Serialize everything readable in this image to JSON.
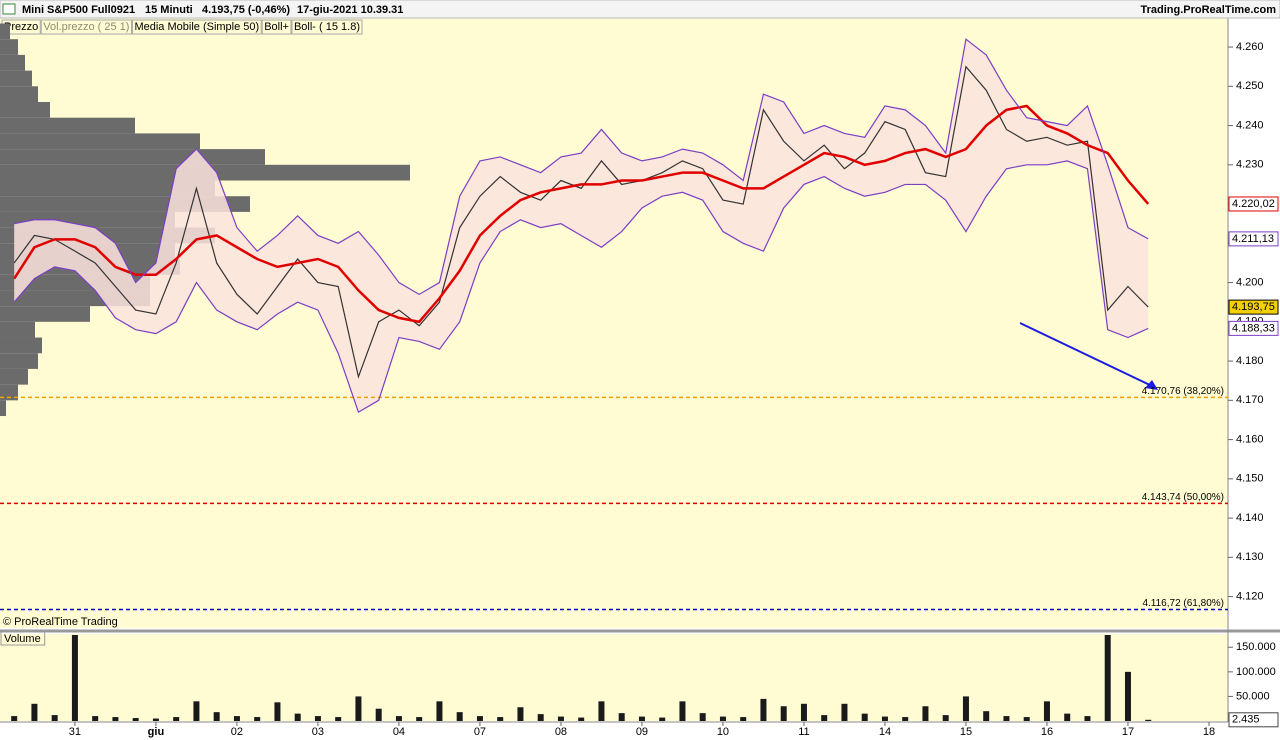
{
  "header": {
    "instrument": "Mini S&P500 Full0921",
    "timeframe": "15 Minuti",
    "quote": "4.193,75 (-0,46%)",
    "datetime": "17-giu-2021 10.39.31",
    "site": "Trading.ProRealTime.com"
  },
  "chart_data": [
    {
      "type": "line",
      "copyright": "© ProRealTime Trading",
      "x": [
        -3,
        -2,
        -1,
        0,
        1,
        2,
        3,
        4,
        5,
        6,
        7,
        8,
        9,
        10,
        11,
        12,
        13,
        14,
        15,
        16,
        17,
        18,
        19,
        20,
        21,
        22,
        23,
        24,
        25,
        26,
        27,
        28,
        29,
        30,
        31,
        32,
        33,
        34,
        35,
        36,
        37,
        38,
        39,
        40,
        41,
        42,
        43,
        44,
        45,
        46,
        47,
        48,
        49,
        50,
        51,
        52,
        53
      ],
      "xlim": [
        -3.7,
        56.94
      ],
      "ylim": [
        4.112,
        4.2674
      ],
      "yticks": [
        {
          "value": 4.12,
          "label": "4.120"
        },
        {
          "value": 4.13,
          "label": "4.130"
        },
        {
          "value": 4.14,
          "label": "4.140"
        },
        {
          "value": 4.15,
          "label": "4.150"
        },
        {
          "value": 4.16,
          "label": "4.160"
        },
        {
          "value": 4.17,
          "label": "4.170"
        },
        {
          "value": 4.18,
          "label": "4.180"
        },
        {
          "value": 4.19,
          "label": "4.190"
        },
        {
          "value": 4.2,
          "label": "4.200"
        },
        {
          "value": 4.21,
          "label": "4.210"
        },
        {
          "value": 4.22,
          "label": "4.220"
        },
        {
          "value": 4.23,
          "label": "4.230"
        },
        {
          "value": 4.24,
          "label": "4.240"
        },
        {
          "value": 4.25,
          "label": "4.250"
        },
        {
          "value": 4.26,
          "label": "4.260"
        }
      ],
      "series": [
        {
          "name": "Prezzo",
          "color": "#333333",
          "last_label": "4.193,75",
          "values": [
            4.205,
            4.212,
            4.211,
            4.208,
            4.205,
            4.199,
            4.193,
            4.192,
            4.205,
            4.224,
            4.205,
            4.197,
            4.192,
            4.199,
            4.206,
            4.2,
            4.199,
            4.176,
            4.19,
            4.193,
            4.189,
            4.195,
            4.214,
            4.222,
            4.227,
            4.223,
            4.221,
            4.226,
            4.224,
            4.231,
            4.225,
            4.226,
            4.228,
            4.231,
            4.229,
            4.221,
            4.22,
            4.244,
            4.236,
            4.231,
            4.235,
            4.229,
            4.233,
            4.241,
            4.239,
            4.228,
            4.227,
            4.255,
            4.249,
            4.239,
            4.236,
            4.237,
            4.235,
            4.236,
            4.193,
            4.199,
            4.19375
          ]
        },
        {
          "name": "Media Mobile (Simple 50)",
          "color": "#e00000",
          "last_label": "4.220,02",
          "values": [
            4.201,
            4.209,
            4.211,
            4.211,
            4.209,
            4.204,
            4.202,
            4.202,
            4.206,
            4.211,
            4.212,
            4.209,
            4.206,
            4.204,
            4.205,
            4.206,
            4.204,
            4.198,
            4.193,
            4.191,
            4.19,
            4.196,
            4.203,
            4.212,
            4.217,
            4.221,
            4.223,
            4.224,
            4.225,
            4.225,
            4.226,
            4.226,
            4.227,
            4.228,
            4.228,
            4.226,
            4.224,
            4.224,
            4.227,
            4.23,
            4.233,
            4.232,
            4.23,
            4.231,
            4.233,
            4.234,
            4.232,
            4.234,
            4.24,
            4.244,
            4.245,
            4.24,
            4.238,
            4.235,
            4.233,
            4.226,
            4.22002
          ]
        },
        {
          "name": "Boll+",
          "color": "#7b3fc4",
          "last_label": "4.211,13",
          "values": [
            4.215,
            4.216,
            4.216,
            4.215,
            4.214,
            4.21,
            4.2,
            4.205,
            4.229,
            4.234,
            4.228,
            4.214,
            4.208,
            4.212,
            4.217,
            4.212,
            4.21,
            4.213,
            4.207,
            4.2,
            4.197,
            4.2,
            4.222,
            4.231,
            4.232,
            4.23,
            4.228,
            4.232,
            4.233,
            4.239,
            4.233,
            4.231,
            4.232,
            4.234,
            4.233,
            4.23,
            4.226,
            4.248,
            4.246,
            4.238,
            4.24,
            4.238,
            4.237,
            4.245,
            4.244,
            4.24,
            4.233,
            4.262,
            4.258,
            4.249,
            4.242,
            4.241,
            4.24,
            4.245,
            4.23,
            4.214,
            4.21113
          ]
        },
        {
          "name": "Boll- ( 15 1.8)",
          "color": "#7b3fc4",
          "last_label": "4.188,33",
          "values": [
            4.195,
            4.201,
            4.204,
            4.203,
            4.198,
            4.191,
            4.188,
            4.187,
            4.19,
            4.2,
            4.193,
            4.19,
            4.188,
            4.192,
            4.195,
            4.193,
            4.182,
            4.167,
            4.17,
            4.186,
            4.185,
            4.183,
            4.19,
            4.205,
            4.213,
            4.216,
            4.214,
            4.215,
            4.212,
            4.209,
            4.213,
            4.219,
            4.222,
            4.223,
            4.221,
            4.213,
            4.21,
            4.208,
            4.219,
            4.225,
            4.227,
            4.224,
            4.222,
            4.223,
            4.225,
            4.225,
            4.221,
            4.213,
            4.222,
            4.229,
            4.23,
            4.23,
            4.231,
            4.229,
            4.188,
            4.186,
            4.18833
          ]
        }
      ],
      "volume_profile": {
        "name": "Vol.prezzo ( 25 1)",
        "color": "#6b6b6b",
        "prices": [
          4.168,
          4.172,
          4.176,
          4.18,
          4.184,
          4.188,
          4.192,
          4.196,
          4.2,
          4.204,
          4.208,
          4.212,
          4.216,
          4.22,
          4.224,
          4.228,
          4.232,
          4.236,
          4.24,
          4.244,
          4.248,
          4.252,
          4.256,
          4.26,
          4.264
        ],
        "values": [
          6,
          18,
          28,
          38,
          42,
          35,
          90,
          150,
          150,
          180,
          175,
          215,
          175,
          250,
          215,
          410,
          265,
          200,
          135,
          50,
          38,
          32,
          25,
          18,
          10
        ]
      },
      "levels": [
        {
          "value": 4.17076,
          "label": "4.170,76 (38,20%)",
          "color": "#f0a000"
        },
        {
          "value": 4.14374,
          "label": "4.143,74 (50,00%)",
          "color": "#e00000"
        },
        {
          "value": 4.11672,
          "label": "4.116,72 (61,80%)",
          "color": "#0000c0"
        }
      ]
    },
    {
      "type": "bar",
      "title": "Volume",
      "color": "#1a1a1a",
      "last_label": "2.435",
      "x": [
        -3,
        -2,
        -1,
        0,
        1,
        2,
        3,
        4,
        5,
        6,
        7,
        8,
        9,
        10,
        11,
        12,
        13,
        14,
        15,
        16,
        17,
        18,
        19,
        20,
        21,
        22,
        23,
        24,
        25,
        26,
        27,
        28,
        29,
        30,
        31,
        32,
        33,
        34,
        35,
        36,
        37,
        38,
        39,
        40,
        41,
        42,
        43,
        44,
        45,
        46,
        47,
        48,
        49,
        50,
        51,
        52,
        53
      ],
      "values": [
        10000,
        35000,
        12000,
        175000,
        10000,
        8000,
        6000,
        5000,
        8000,
        40000,
        18000,
        10000,
        8000,
        38000,
        15000,
        10000,
        8000,
        50000,
        25000,
        10000,
        8000,
        40000,
        18000,
        10000,
        8000,
        28000,
        14000,
        9000,
        7000,
        40000,
        16000,
        9000,
        7000,
        40000,
        16000,
        9000,
        8000,
        45000,
        30000,
        35000,
        12000,
        35000,
        15000,
        9000,
        8000,
        30000,
        12000,
        50000,
        20000,
        10000,
        8000,
        40000,
        15000,
        10000,
        175000,
        100000,
        2435
      ],
      "xlim": [
        -3.7,
        56.94
      ],
      "xticks": [
        {
          "value": 0,
          "label": "31"
        },
        {
          "value": 4,
          "label": "giu"
        },
        {
          "value": 8,
          "label": "02"
        },
        {
          "value": 12,
          "label": "03"
        },
        {
          "value": 16,
          "label": "04"
        },
        {
          "value": 20,
          "label": "07"
        },
        {
          "value": 24,
          "label": "08"
        },
        {
          "value": 28,
          "label": "09"
        },
        {
          "value": 32,
          "label": "10"
        },
        {
          "value": 36,
          "label": "11"
        },
        {
          "value": 40,
          "label": "14"
        },
        {
          "value": 44,
          "label": "15"
        },
        {
          "value": 48,
          "label": "16"
        },
        {
          "value": 52,
          "label": "17"
        },
        {
          "value": 56,
          "label": "18"
        }
      ],
      "ylim": [
        0,
        177000
      ],
      "yticks": [
        {
          "value": 50000,
          "label": "50.000"
        },
        {
          "value": 100000,
          "label": "100.000"
        },
        {
          "value": 150000,
          "label": "150.000"
        }
      ]
    }
  ]
}
